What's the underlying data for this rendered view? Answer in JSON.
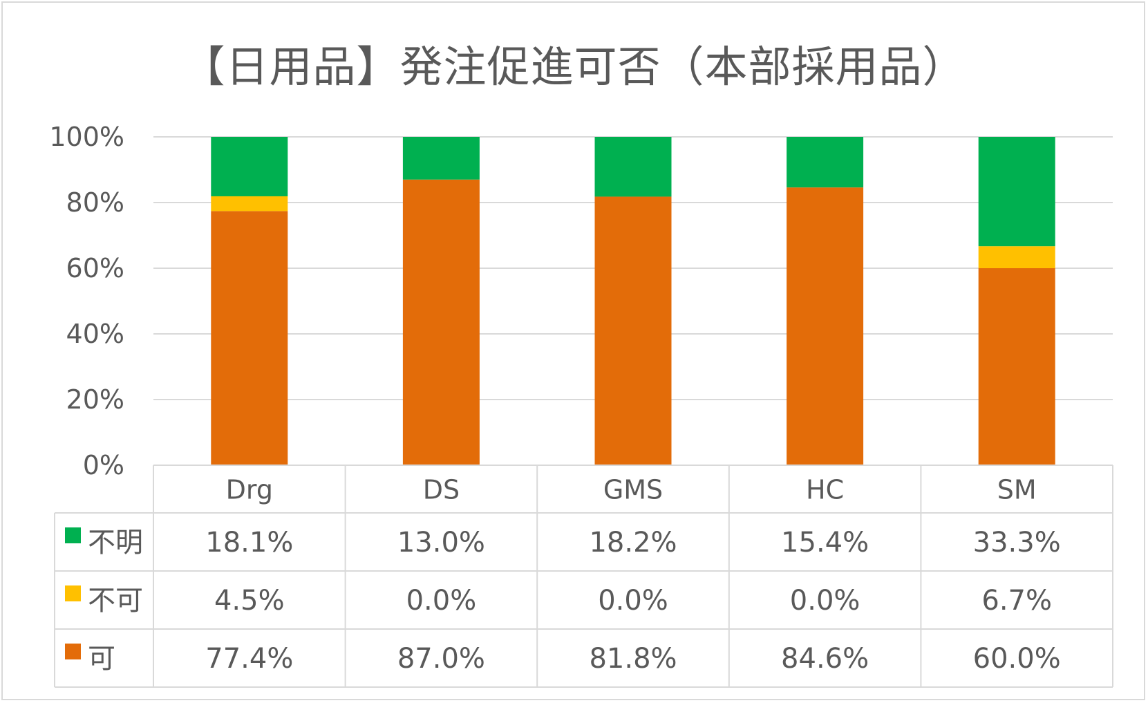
{
  "chart_data": {
    "type": "bar",
    "stacked": true,
    "normalized": true,
    "title": "【日用品】発注促進可否（本部採用品）",
    "categories": [
      "Drg",
      "DS",
      "GMS",
      "HC",
      "SM"
    ],
    "series": [
      {
        "name": "可",
        "color": "#E36C09",
        "values": [
          77.4,
          87.0,
          81.8,
          84.6,
          60.0
        ],
        "labels": [
          "77.4%",
          "87.0%",
          "81.8%",
          "84.6%",
          "60.0%"
        ]
      },
      {
        "name": "不可",
        "color": "#FFC000",
        "values": [
          4.5,
          0.0,
          0.0,
          0.0,
          6.7
        ],
        "labels": [
          "4.5%",
          "0.0%",
          "0.0%",
          "0.0%",
          "6.7%"
        ]
      },
      {
        "name": "不明",
        "color": "#00B050",
        "values": [
          18.1,
          13.0,
          18.2,
          15.4,
          33.3
        ],
        "labels": [
          "18.1%",
          "13.0%",
          "18.2%",
          "15.4%",
          "33.3%"
        ]
      }
    ],
    "table_row_order": [
      "不明",
      "不可",
      "可"
    ],
    "ylim": [
      0,
      100
    ],
    "yticks": [
      "0%",
      "20%",
      "40%",
      "60%",
      "80%",
      "100%"
    ],
    "grid": true,
    "legend": "data-table"
  }
}
